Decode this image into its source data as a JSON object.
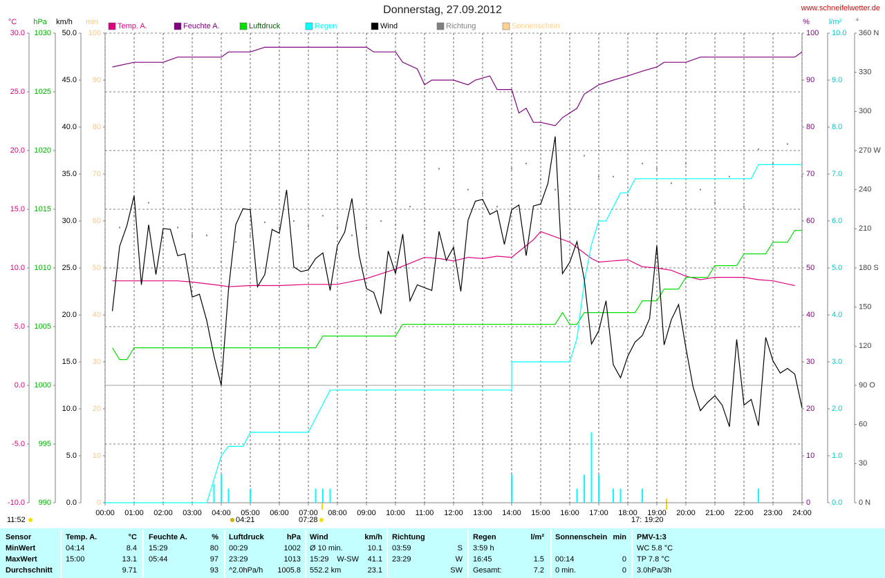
{
  "chart_data": {
    "type": "line",
    "title": "Donnerstag, 27.09.2012",
    "source": "www.schneifelwetter.de",
    "grid": true,
    "xlim": [
      0,
      24
    ],
    "xticks": [
      {
        "value": 0,
        "label": "00:00"
      },
      {
        "value": 1,
        "label": "01:00"
      },
      {
        "value": 2,
        "label": "02:00"
      },
      {
        "value": 3,
        "label": "03:00"
      },
      {
        "value": 4,
        "label": "04:00"
      },
      {
        "value": 5,
        "label": "05:00"
      },
      {
        "value": 6,
        "label": "06:00"
      },
      {
        "value": 7,
        "label": "07:00"
      },
      {
        "value": 8,
        "label": "08:00"
      },
      {
        "value": 9,
        "label": "09:00"
      },
      {
        "value": 10,
        "label": "10:00"
      },
      {
        "value": 11,
        "label": "11:00"
      },
      {
        "value": 12,
        "label": "12:00"
      },
      {
        "value": 13,
        "label": "13:00"
      },
      {
        "value": 14,
        "label": "14:00"
      },
      {
        "value": 15,
        "label": "15:00"
      },
      {
        "value": 16,
        "label": "16:00"
      },
      {
        "value": 17,
        "label": "17:00"
      },
      {
        "value": 18,
        "label": "18:00"
      },
      {
        "value": 19,
        "label": "19:00"
      },
      {
        "value": 20,
        "label": "20:00"
      },
      {
        "value": 21,
        "label": "21:00"
      },
      {
        "value": 22,
        "label": "22:00"
      },
      {
        "value": 23,
        "label": "23:00"
      },
      {
        "value": 24,
        "label": "24:00"
      }
    ],
    "axes": [
      {
        "unit": "°C",
        "color": "#e0007f",
        "lim": [
          -10,
          30
        ],
        "ticks": [
          {
            "value": 30,
            "label": "30.0"
          },
          {
            "value": 25,
            "label": "25.0"
          },
          {
            "value": 20,
            "label": "20.0"
          },
          {
            "value": 15,
            "label": "15.0"
          },
          {
            "value": 10,
            "label": "10.0"
          },
          {
            "value": 5,
            "label": "5.0"
          },
          {
            "value": 0,
            "label": "0.0"
          },
          {
            "value": -5,
            "label": "-5.0"
          },
          {
            "value": -10,
            "label": "-10.0"
          }
        ]
      },
      {
        "unit": "hPa",
        "color": "#00b000",
        "lim": [
          990,
          1030
        ],
        "ticks": [
          1030,
          1025,
          1020,
          1015,
          1010,
          1005,
          1000,
          995,
          990
        ]
      },
      {
        "unit": "km/h",
        "color": "#000000",
        "lim": [
          0,
          50
        ],
        "ticks": [
          {
            "value": 50,
            "label": "50.0"
          },
          {
            "value": 45,
            "label": "45.0"
          },
          {
            "value": 40,
            "label": "40.0"
          },
          {
            "value": 35,
            "label": "35.0"
          },
          {
            "value": 30,
            "label": "30.0"
          },
          {
            "value": 25,
            "label": "25.0"
          },
          {
            "value": 20,
            "label": "20.0"
          },
          {
            "value": 15,
            "label": "15.0"
          },
          {
            "value": 10,
            "label": "10.0"
          },
          {
            "value": 5,
            "label": "5.0"
          },
          {
            "value": 0,
            "label": "0.0"
          }
        ]
      },
      {
        "unit": "min",
        "color": "#f0c890",
        "lim": [
          0,
          100
        ],
        "ticks": [
          100,
          90,
          80,
          70,
          60,
          50,
          40,
          30,
          20,
          10,
          0
        ]
      },
      {
        "unit": "%",
        "color": "#800080",
        "lim": [
          0,
          100
        ],
        "ticks": [
          100,
          90,
          80,
          70,
          60,
          50,
          40,
          30,
          20,
          10,
          0
        ]
      },
      {
        "unit": "l/m²",
        "color": "#00c8c8",
        "lim": [
          0,
          10
        ],
        "ticks": [
          {
            "value": 10,
            "label": "10.0"
          },
          {
            "value": 9,
            "label": "9.0"
          },
          {
            "value": 8,
            "label": "8.0"
          },
          {
            "value": 7,
            "label": "7.0"
          },
          {
            "value": 6,
            "label": "6.0"
          },
          {
            "value": 5,
            "label": "5.0"
          },
          {
            "value": 4,
            "label": "4.0"
          },
          {
            "value": 3,
            "label": "3.0"
          },
          {
            "value": 2,
            "label": "2.0"
          },
          {
            "value": 1,
            "label": "1.0"
          },
          {
            "value": 0,
            "label": "0.0"
          }
        ]
      },
      {
        "unit": "°",
        "color": "#404040",
        "lim": [
          0,
          360
        ],
        "ticks": [
          {
            "value": 360,
            "label": "360 N"
          },
          330,
          300,
          {
            "value": 270,
            "label": "270 W"
          },
          240,
          210,
          {
            "value": 180,
            "label": "180 S"
          },
          150,
          120,
          {
            "value": 90,
            "label": "90 O"
          },
          60,
          30,
          {
            "value": 0,
            "label": "0 N"
          }
        ]
      }
    ],
    "series": [
      {
        "name": "Temp. A.",
        "color": "#e0007f",
        "axis": "°C",
        "x": [
          0.25,
          1,
          2,
          2.5,
          3,
          4,
          4.25,
          5,
          6,
          7,
          8,
          9,
          10,
          11,
          11.5,
          12,
          12.5,
          13,
          13.5,
          14,
          14.75,
          15,
          16,
          16.75,
          17,
          17.5,
          18,
          18.5,
          19,
          19.5,
          20,
          20.5,
          21,
          22,
          22.5,
          23,
          23.75
        ],
        "values": [
          8.9,
          8.9,
          8.9,
          8.9,
          8.8,
          8.5,
          8.4,
          8.5,
          8.5,
          8.6,
          8.6,
          9.1,
          9.9,
          10.9,
          10.8,
          10.6,
          10.9,
          10.8,
          11.0,
          10.9,
          12.4,
          13.1,
          12.2,
          10.8,
          10.5,
          10.6,
          10.7,
          10.1,
          10.0,
          9.8,
          9.3,
          9.0,
          9.2,
          9.2,
          9.0,
          8.9,
          8.5
        ]
      },
      {
        "name": "Feuchte A.",
        "color": "#800080",
        "axis": "%",
        "x": [
          0.25,
          1,
          2,
          2.5,
          3,
          4,
          4.25,
          5,
          5.5,
          9,
          9.25,
          10,
          10.25,
          10.75,
          11,
          11.25,
          12,
          12.5,
          12.75,
          13.25,
          13.5,
          14,
          14.25,
          14.5,
          14.75,
          15,
          15.5,
          15.75,
          16.25,
          16.5,
          17,
          17.5,
          18,
          18.5,
          19,
          19.25,
          20,
          20.5,
          23.75,
          24
        ],
        "values": [
          92.8,
          93.8,
          93.8,
          94.9,
          94.9,
          94.9,
          96,
          96,
          97,
          97,
          96,
          96,
          93.8,
          92.4,
          89,
          90,
          90,
          89,
          90,
          90.9,
          88,
          88,
          83,
          84,
          81,
          81,
          80.3,
          82,
          84,
          87,
          89,
          90,
          90.9,
          91.9,
          92.8,
          93.8,
          93.8,
          94.9,
          94.9,
          96
        ]
      },
      {
        "name": "Luftdruck",
        "color": "#00e000",
        "axis": "hPa",
        "x": [
          0.25,
          0.5,
          0.75,
          1,
          7.25,
          7.5,
          10,
          10.25,
          15.5,
          15.75,
          16,
          16.25,
          16.5,
          18.25,
          18.5,
          19,
          19.25,
          19.75,
          20,
          20.75,
          21,
          21.75,
          22,
          22.75,
          23,
          23.5,
          23.75,
          24
        ],
        "values": [
          1003.2,
          1002.2,
          1002.2,
          1003.2,
          1003.2,
          1004.2,
          1004.2,
          1005.2,
          1005.2,
          1006.2,
          1005.2,
          1005.2,
          1006.2,
          1006.2,
          1007.2,
          1007.2,
          1008.2,
          1008.2,
          1009.2,
          1009.2,
          1010.2,
          1010.2,
          1011.2,
          1011.2,
          1012.2,
          1012.2,
          1013.2,
          1013.2
        ]
      },
      {
        "name": "Regen",
        "color": "#00ffff",
        "axis": "l/m²",
        "x": [
          0,
          3.5,
          4,
          4.25,
          4.75,
          5,
          7,
          7.75,
          14,
          14,
          16,
          16.25,
          16.5,
          16.75,
          17,
          17.25,
          17.5,
          17.75,
          18,
          18.25,
          22.25,
          22.5,
          24
        ],
        "values": [
          0,
          0,
          1.0,
          1.2,
          1.2,
          1.5,
          1.5,
          2.4,
          2.4,
          3.0,
          3.0,
          3.5,
          4.7,
          5.5,
          6.0,
          6.0,
          6.3,
          6.6,
          6.6,
          6.9,
          6.9,
          7.2,
          7.2
        ]
      },
      {
        "name": "Wind",
        "color": "#000000",
        "axis": "km/h",
        "x": [
          0.25,
          0.5,
          0.75,
          1,
          1.25,
          1.5,
          1.75,
          2,
          2.25,
          2.5,
          2.75,
          3,
          3.25,
          3.5,
          3.75,
          4,
          4.25,
          4.5,
          4.75,
          5,
          5.25,
          5.5,
          5.75,
          6,
          6.25,
          6.5,
          6.75,
          7,
          7.25,
          7.5,
          7.75,
          8,
          8.25,
          8.5,
          8.75,
          9,
          9.25,
          9.5,
          9.75,
          10,
          10.25,
          10.5,
          10.75,
          11,
          11.25,
          11.5,
          11.75,
          12,
          12.25,
          12.5,
          12.75,
          13,
          13.25,
          13.5,
          13.75,
          14,
          14.25,
          14.5,
          14.75,
          15,
          15.25,
          15.5,
          15.75,
          16,
          16.25,
          16.5,
          16.75,
          17,
          17.25,
          17.5,
          17.75,
          18,
          18.25,
          18.5,
          18.75,
          19,
          19.25,
          19.5,
          19.75,
          20,
          20.25,
          20.5,
          20.75,
          21,
          21.25,
          21.5,
          21.75,
          22,
          22.25,
          22.5,
          22.75,
          23,
          23.25,
          23.5,
          23.75,
          24
        ],
        "values": [
          20.4,
          27.3,
          29.5,
          32.7,
          23.2,
          29.6,
          24.3,
          29.2,
          29.1,
          26.3,
          26.5,
          21.9,
          22.2,
          19.4,
          15.6,
          12.5,
          22.7,
          29.6,
          31.3,
          31.2,
          23.0,
          24.3,
          29.1,
          28.7,
          33.3,
          25.1,
          24.6,
          24.8,
          26.0,
          26.6,
          22.6,
          27.4,
          28.8,
          32.4,
          26.3,
          22.8,
          22.4,
          20.1,
          26.8,
          24.4,
          28.6,
          21.5,
          23.2,
          22.9,
          22.6,
          28.9,
          25.8,
          27.2,
          22.5,
          30.1,
          32.1,
          32.3,
          30.7,
          31.1,
          27.5,
          31.2,
          31.7,
          26.3,
          31.6,
          31.8,
          34.0,
          39.0,
          24.4,
          25.6,
          27.8,
          23.8,
          16.9,
          18.3,
          21.5,
          14.7,
          13.3,
          15.6,
          17.1,
          17.8,
          19.6,
          27.4,
          16.8,
          19.5,
          21.1,
          16.5,
          12.3,
          9.8,
          10.7,
          11.4,
          10.4,
          8.1,
          17.4,
          10.4,
          11.0,
          8.2,
          17.6,
          15.1,
          13.8,
          14.3,
          13.7,
          10.1
        ]
      },
      {
        "name": "Richtung",
        "color": "#808080",
        "axis": "°",
        "style": "dots",
        "x": [
          0.5,
          1,
          1.5,
          2,
          2.5,
          3,
          3.5,
          4,
          4.5,
          5,
          5.5,
          6,
          6.5,
          7,
          7.5,
          8,
          8.5,
          9,
          9.5,
          10,
          10.5,
          11,
          11.5,
          12,
          12.5,
          13,
          13.5,
          14,
          14.5,
          15,
          15.5,
          16,
          16.5,
          17,
          17.5,
          18,
          18.5,
          19,
          19.5,
          20,
          20.5,
          21,
          21.5,
          22,
          22.5,
          23,
          23.5,
          24
        ],
        "values": [
          211,
          220,
          230,
          203,
          211,
          205,
          205,
          185,
          200,
          205,
          215,
          211,
          216,
          212,
          220,
          211,
          205,
          211,
          216,
          213,
          227,
          216,
          256,
          216,
          240,
          237,
          227,
          256,
          260,
          248,
          240,
          235,
          266,
          250,
          250,
          236,
          260,
          256,
          245,
          260,
          240,
          230,
          250,
          227,
          271,
          260,
          275,
          250
        ]
      },
      {
        "name": "Sonnenschein",
        "color": "#ffd090",
        "axis": "min",
        "x": [],
        "values": []
      }
    ],
    "rain_bars": {
      "color": "#00ffff",
      "axis": "l/m²",
      "x": [
        3.75,
        4,
        4.25,
        5,
        7.25,
        7.5,
        7.75,
        14,
        16.25,
        16.5,
        16.75,
        17,
        17.5,
        17.75,
        18.5,
        22.5
      ],
      "values": [
        0.4,
        0.6,
        0.3,
        0.3,
        0.3,
        0.3,
        0.3,
        0.6,
        0.3,
        0.6,
        1.5,
        0.6,
        0.3,
        0.3,
        0.3,
        0.3
      ]
    },
    "annotations": [
      "11:52",
      "04:21",
      "07:28",
      "17:",
      "19:20"
    ]
  },
  "stats_table": {
    "header": [
      [
        "Sensor"
      ],
      [
        "Temp. A.",
        "°C"
      ],
      [
        "Feuchte A.",
        "%"
      ],
      [
        "Luftdruck",
        "hPa"
      ],
      [
        "Wind",
        "km/h"
      ],
      [
        "Richtung"
      ],
      [
        "Regen",
        "l/m²"
      ],
      [
        "Sonnenschein",
        "min"
      ],
      [
        "PMV-1:3"
      ]
    ],
    "rows": [
      [
        [
          "MinWert"
        ],
        [
          "04:14",
          "8.4"
        ],
        [
          "15:29",
          "80"
        ],
        [
          "00:29",
          "1002"
        ],
        [
          "Ø 10 min.",
          "10.1"
        ],
        [
          "03:59",
          "S"
        ],
        [
          "3:59 h"
        ],
        [],
        [
          "WC 5.8 °C"
        ]
      ],
      [
        [
          "MaxWert"
        ],
        [
          "15:00",
          "13.1"
        ],
        [
          "05:44",
          "97"
        ],
        [
          "23:29",
          "1013"
        ],
        [
          "15:29",
          "W-SW",
          "41.1"
        ],
        [
          "23:29",
          "W"
        ],
        [
          "16:45",
          "1.5"
        ],
        [
          "00:14",
          "0"
        ],
        [
          "TP 7.8 °C"
        ]
      ],
      [
        [
          "Durchschnitt"
        ],
        [
          "9.71"
        ],
        [
          "93"
        ],
        [
          "^2.0hPa/h",
          "1005.8"
        ],
        [
          "552.2 km",
          "23.1"
        ],
        [
          "SW"
        ],
        [
          "Gesamt:",
          "7.2"
        ],
        [
          "0 min.",
          "0"
        ],
        [
          "3.0hPa/3h"
        ]
      ]
    ]
  }
}
